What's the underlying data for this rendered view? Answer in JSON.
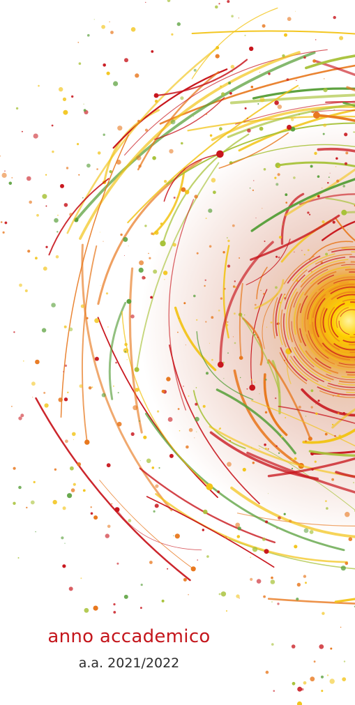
{
  "cover": {
    "title": "anno accademico",
    "subtitle": "a.a. 2021/2022"
  },
  "artwork": {
    "description_icon": "paint-splash-burst",
    "colors": {
      "red": "#c8161d",
      "orange": "#e8781e",
      "yellow": "#f2c418",
      "lime": "#a8c23a",
      "green": "#5aa03c",
      "core": "#ffd200",
      "title_red": "#c4161c"
    }
  }
}
